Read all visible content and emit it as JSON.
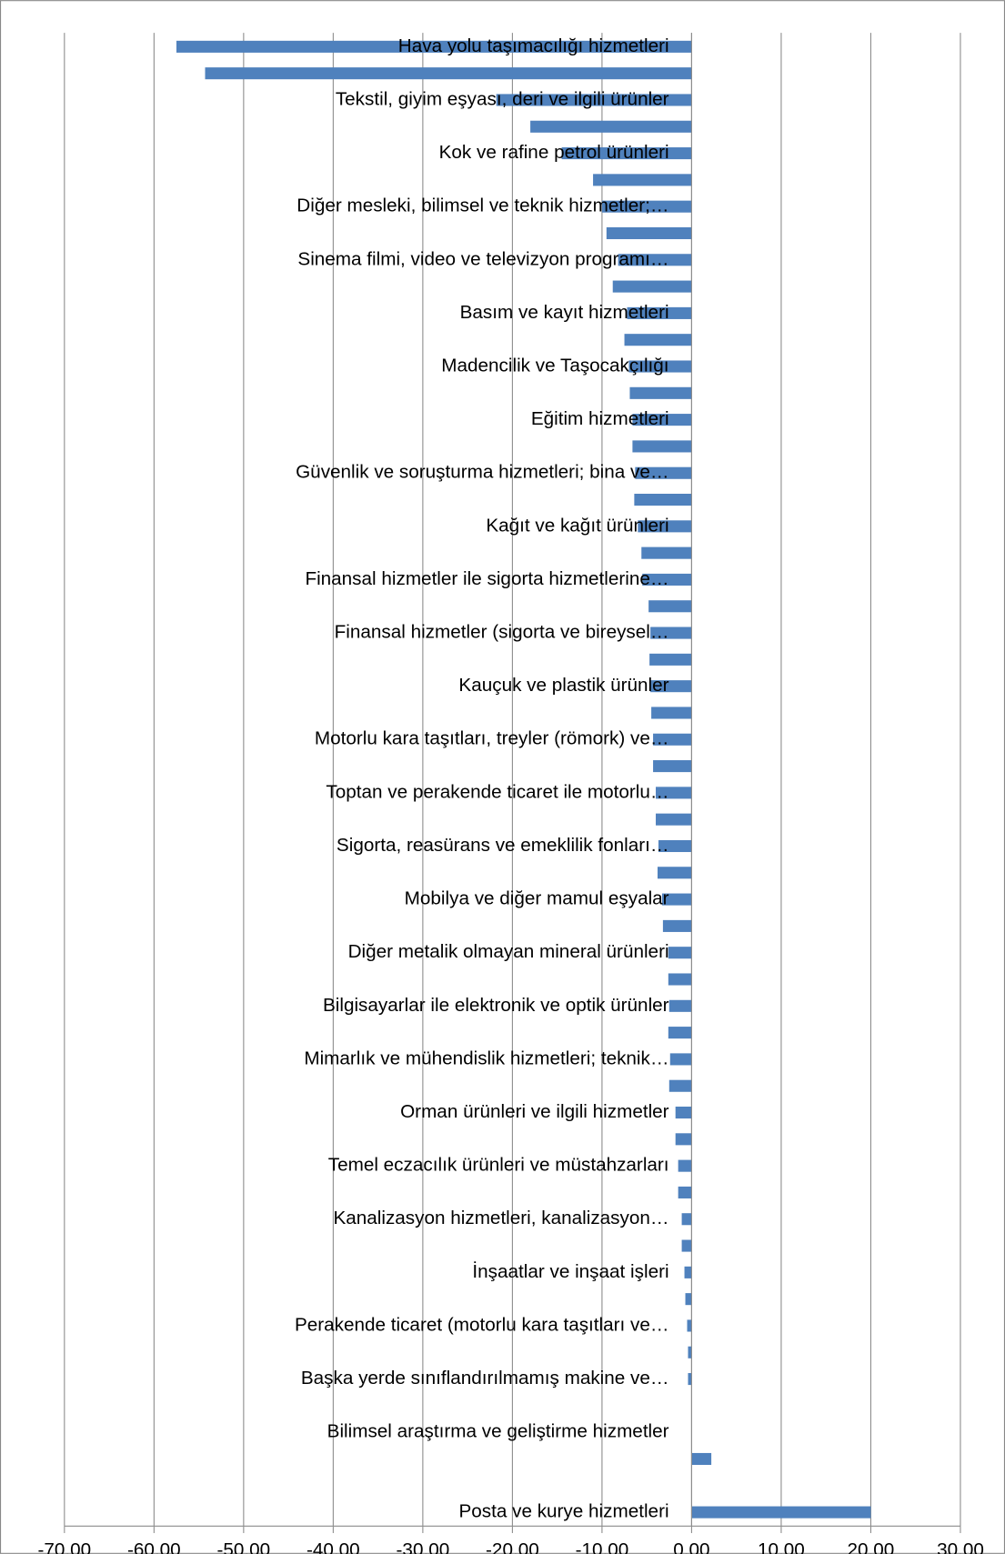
{
  "chart_data": {
    "type": "barh",
    "categories": [
      "Hava yolu taşımacılığı hizmetleri",
      null,
      "Tekstil, giyim eşyası, deri ve ilgili ürünler",
      null,
      "Kok ve rafine petrol ürünleri",
      null,
      "Diğer mesleki, bilimsel ve teknik hizmetler;…",
      null,
      "Sinema filmi, video ve televizyon programı…",
      null,
      "Basım ve kayıt hizmetleri",
      null,
      "Madencilik ve Taşocakçılığı",
      null,
      "Eğitim hizmetleri",
      null,
      "Güvenlik ve soruşturma hizmetleri; bina ve…",
      null,
      "Kağıt ve kağıt ürünleri",
      null,
      "Finansal hizmetler ile sigorta hizmetlerine…",
      null,
      "Finansal hizmetler (sigorta ve bireysel…",
      null,
      "Kauçuk ve plastik ürünler",
      null,
      "Motorlu kara taşıtları, treyler (römork) ve…",
      null,
      "Toptan ve perakende ticaret ile motorlu…",
      null,
      "Sigorta, reasürans ve emeklilik fonları…",
      null,
      "Mobilya ve diğer mamul eşyalar",
      null,
      "Diğer metalik olmayan mineral ürünleri",
      null,
      "Bilgisayarlar ile elektronik ve optik ürünler",
      null,
      "Mimarlık ve mühendislik hizmetleri; teknik…",
      null,
      "Orman ürünleri ve ilgili hizmetler",
      null,
      "Temel eczacılık ürünleri ve müstahzarları",
      null,
      "Kanalizasyon hizmetleri, kanalizasyon…",
      null,
      "İnşaatlar ve inşaat işleri",
      null,
      "Perakende ticaret (motorlu kara taşıtları ve…",
      null,
      "Başka yerde sınıflandırılmamış makine ve…",
      null,
      "Bilimsel araştırma ve geliştirme hizmetler",
      null,
      null,
      "Posta ve kurye hizmetleri"
    ],
    "values": [
      -57.5,
      -54.3,
      -21.8,
      -18,
      -14.5,
      -11,
      -10,
      -9.5,
      -8.2,
      -8.8,
      -7.2,
      -7.5,
      -7,
      -6.9,
      -6.6,
      -6.6,
      -6.3,
      -6.4,
      -6,
      -5.6,
      -5.5,
      -4.8,
      -4.6,
      -4.7,
      -4.6,
      -4.5,
      -4.3,
      -4.3,
      -4,
      -4,
      -3.7,
      -3.8,
      -3.3,
      -3.2,
      -2.6,
      -2.6,
      -2.5,
      -2.6,
      -2.4,
      -2.5,
      -1.8,
      -1.8,
      -1.5,
      -1.5,
      -1.1,
      -1.1,
      -0.8,
      -0.7,
      -0.5,
      -0.4,
      -0.4,
      0,
      0,
      2.2,
      0,
      20
    ],
    "color": "#4f81bd",
    "xlim": [
      -70,
      30
    ],
    "xticks": [
      {
        "value": -70,
        "label": "-70,00"
      },
      {
        "value": -60,
        "label": "-60,00"
      },
      {
        "value": -50,
        "label": "-50,00"
      },
      {
        "value": -40,
        "label": "-40,00"
      },
      {
        "value": -30,
        "label": "-30,00"
      },
      {
        "value": -20,
        "label": "-20,00"
      },
      {
        "value": -10,
        "label": "-10,00"
      },
      {
        "value": 0,
        "label": "0,00"
      },
      {
        "value": 10,
        "label": "10,00"
      },
      {
        "value": 20,
        "label": "20,00"
      },
      {
        "value": 30,
        "label": "30,00"
      }
    ],
    "grid": true
  }
}
